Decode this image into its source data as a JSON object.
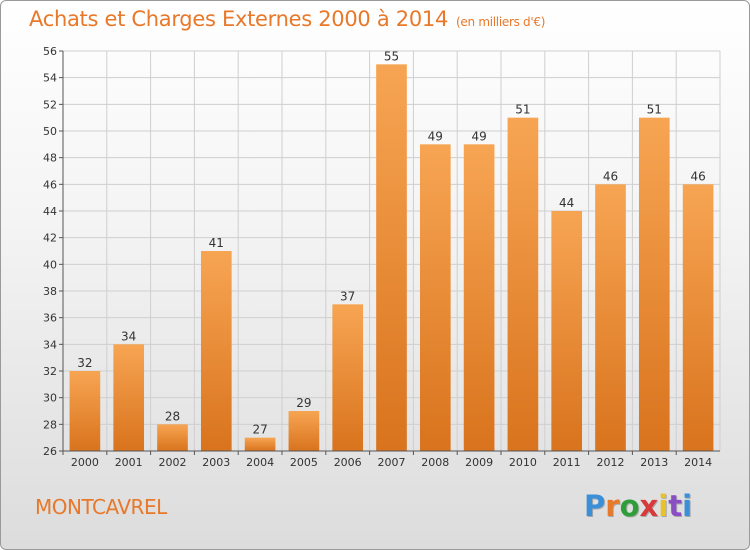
{
  "header": {
    "title": "Achats et Charges Externes 2000 à 2014",
    "subtitle": "(en milliers d'€)"
  },
  "location": "MONTCAVREL",
  "logo": {
    "text": "Proxiti",
    "colors": [
      "#3a8fd8",
      "#e8782a",
      "#2e9e3a",
      "#d83a3a",
      "#e8c22a",
      "#8a4fc4",
      "#3a8fd8"
    ]
  },
  "chart_data": {
    "type": "bar",
    "categories": [
      "2000",
      "2001",
      "2002",
      "2003",
      "2004",
      "2005",
      "2006",
      "2007",
      "2008",
      "2009",
      "2010",
      "2011",
      "2012",
      "2013",
      "2014"
    ],
    "values": [
      32,
      34,
      28,
      41,
      27,
      29,
      37,
      55,
      49,
      49,
      51,
      44,
      46,
      51,
      46
    ],
    "ylim": [
      26,
      56
    ],
    "yticks": [
      26,
      28,
      30,
      32,
      34,
      36,
      38,
      40,
      42,
      44,
      46,
      48,
      50,
      52,
      54,
      56
    ],
    "grid": true,
    "bar_color": "#f0913a"
  }
}
